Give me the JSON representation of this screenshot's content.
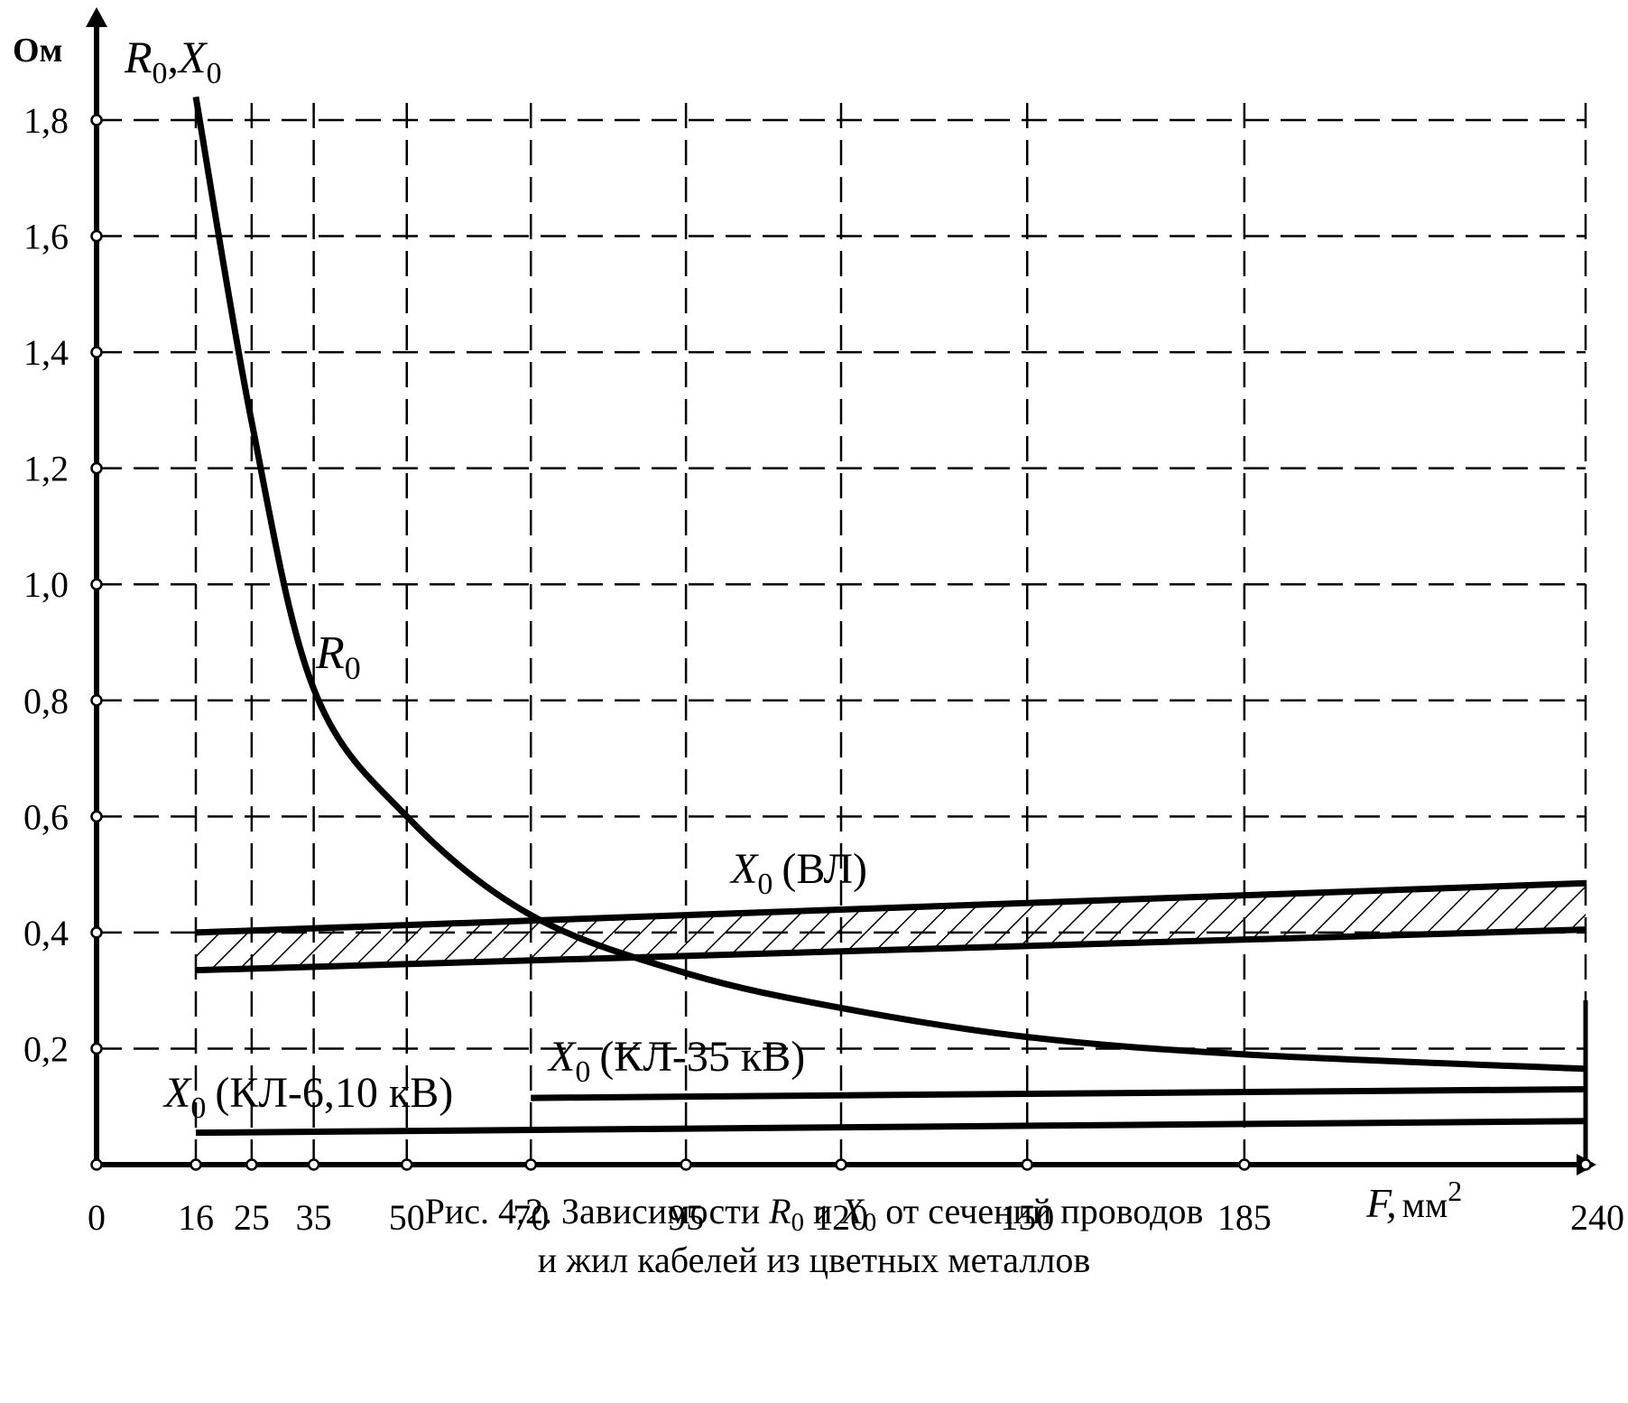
{
  "chart_data": {
    "type": "line",
    "x_ticks": [
      "0",
      "16",
      "25",
      "35",
      "50",
      "70",
      "95",
      "120",
      "150",
      "185",
      "240"
    ],
    "y_ticks": [
      "0,2",
      "0,4",
      "0,6",
      "0,8",
      "1,0",
      "1,2",
      "1,4",
      "1,6",
      "1,8"
    ],
    "xlim": [
      0,
      240
    ],
    "ylim": [
      0,
      1.8
    ],
    "grid": true,
    "y_unit": "Ом",
    "y_axis_label": {
      "main1": "R",
      "sub1": "0",
      "sep": ",",
      "main2": "X",
      "sub2": "0"
    },
    "x_axis_label": {
      "var": "F,",
      "unit": "мм",
      "sup": "2"
    },
    "series": [
      {
        "label": {
          "main": "R",
          "sub": "0",
          "suffix": ""
        },
        "style": "curve",
        "x": [
          16,
          25,
          35,
          50,
          70,
          95,
          120,
          150,
          185,
          240
        ],
        "y": [
          1.84,
          1.28,
          0.82,
          0.6,
          0.43,
          0.33,
          0.27,
          0.22,
          0.19,
          0.165
        ]
      },
      {
        "label": {
          "main": "X",
          "sub": "0",
          "suffix": "(ВЛ)"
        },
        "style": "band",
        "x": [
          16,
          240
        ],
        "y_upper": [
          0.4,
          0.485
        ],
        "y_lower": [
          0.335,
          0.405
        ]
      },
      {
        "label": {
          "main": "X",
          "sub": "0",
          "suffix": "(КЛ-35 кВ)"
        },
        "style": "line",
        "x": [
          70,
          240
        ],
        "y": [
          0.115,
          0.13
        ]
      },
      {
        "label": {
          "main": "X",
          "sub": "0",
          "suffix": "(КЛ-6,10 кВ)"
        },
        "style": "line",
        "x": [
          16,
          240
        ],
        "y": [
          0.055,
          0.075
        ]
      }
    ]
  },
  "caption": {
    "line1_pre": "Рис. 4.2. Зависимости ",
    "r_main": "R",
    "r_sub": "0",
    "conj": " и ",
    "x_main": "X",
    "x_sub": "0",
    "line1_post": " от сечений проводов",
    "line2": "и жил кабелей из цветных металлов"
  }
}
